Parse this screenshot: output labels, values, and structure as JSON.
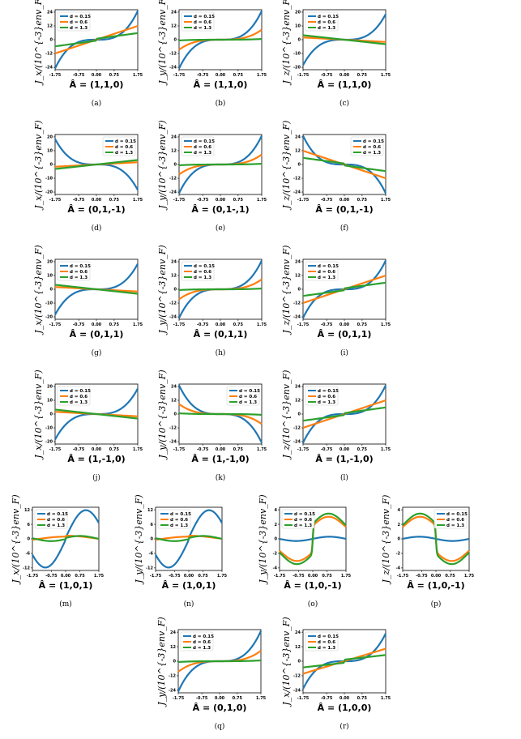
{
  "figure": {
    "legend_labels": [
      "d = 0.15",
      "d = 0.6",
      "d = 1.3"
    ],
    "colors": [
      "#1f77b4",
      "#ff7f0e",
      "#2ca02c"
    ]
  },
  "chart_data": [
    {
      "id": "a",
      "caption": "(a)",
      "type": "line",
      "ylabel": "J_x/(10^{-3}env_F)",
      "xlabel": "Â = (1,1,0)",
      "ylim": [
        -24,
        24
      ],
      "yticks": [
        "24",
        "12",
        "0",
        "-12",
        "-24"
      ],
      "xticks": [
        "-1.75",
        "-0.75",
        "0.00",
        "0.75",
        "1.75"
      ],
      "xlim": [
        -1.75,
        1.75
      ],
      "legend": "top-left",
      "series": [
        {
          "name": "d = 0.15",
          "shape": "cubic",
          "amp": 23,
          "jump": 0
        },
        {
          "name": "d = 0.6",
          "shape": "linear",
          "amp": 11,
          "jump": 0
        },
        {
          "name": "d = 1.3",
          "shape": "linear",
          "amp": 4.5,
          "jump": 0.8
        }
      ]
    },
    {
      "id": "b",
      "caption": "(b)",
      "type": "line",
      "ylabel": "J_y/(10^{-3}env_F)",
      "xlabel": "Â = (1,1,0)",
      "ylim": [
        -24,
        24
      ],
      "yticks": [
        "24",
        "12",
        "0",
        "-12",
        "-24"
      ],
      "xticks": [
        "-1.75",
        "-0.75",
        "0.00",
        "0.75",
        "1.75"
      ],
      "xlim": [
        -1.75,
        1.75
      ],
      "legend": "top-left",
      "series": [
        {
          "name": "d = 0.15",
          "shape": "cubic",
          "amp": 23,
          "jump": 0
        },
        {
          "name": "d = 0.6",
          "shape": "cubic",
          "amp": 8,
          "jump": 0
        },
        {
          "name": "d = 1.3",
          "shape": "cubic",
          "amp": 0.6,
          "jump": 0
        }
      ]
    },
    {
      "id": "c",
      "caption": "(c)",
      "type": "line",
      "ylabel": "J_z/(10^{-3}env_F)",
      "xlabel": "Â = (1,1,0)",
      "ylim": [
        -20,
        20
      ],
      "yticks": [
        "20",
        "10",
        "0",
        "-10",
        "-20"
      ],
      "xticks": [
        "-1.75",
        "-0.75",
        "0.00",
        "0.75",
        "1.75"
      ],
      "xlim": [
        -1.75,
        1.75
      ],
      "legend": "top-left",
      "series": [
        {
          "name": "d = 0.15",
          "shape": "cubic",
          "amp": 17,
          "jump": 0
        },
        {
          "name": "d = 0.6",
          "shape": "linear",
          "amp": -1.5,
          "jump": 0
        },
        {
          "name": "d = 1.3",
          "shape": "linear",
          "amp": -3,
          "jump": 0
        }
      ]
    },
    {
      "id": "d",
      "caption": "(d)",
      "type": "line",
      "ylabel": "J_x/(10^{-3}env_F)",
      "xlabel": "Â = (0,1,-1)",
      "ylim": [
        -20,
        20
      ],
      "yticks": [
        "20",
        "10",
        "0",
        "-10",
        "-20"
      ],
      "xticks": [
        "-1.75",
        "-0.75",
        "0.00",
        "0.75",
        "1.75"
      ],
      "xlim": [
        -1.75,
        1.75
      ],
      "legend": "top-right",
      "series": [
        {
          "name": "d = 0.15",
          "shape": "cubic",
          "amp": -17,
          "jump": 0
        },
        {
          "name": "d = 0.6",
          "shape": "linear",
          "amp": 1.5,
          "jump": 0
        },
        {
          "name": "d = 1.3",
          "shape": "linear",
          "amp": 3,
          "jump": 0
        }
      ]
    },
    {
      "id": "e",
      "caption": "(e)",
      "type": "line",
      "ylabel": "J_y/(10^{-3}env_F)",
      "xlabel": "Â = (0,1-,1)",
      "ylim": [
        -24,
        24
      ],
      "yticks": [
        "24",
        "12",
        "0",
        "-12",
        "-24"
      ],
      "xticks": [
        "-1.75",
        "-0.75",
        "0.00",
        "0.75",
        "1.75"
      ],
      "xlim": [
        -1.75,
        1.75
      ],
      "legend": "top-left",
      "series": [
        {
          "name": "d = 0.15",
          "shape": "cubic",
          "amp": 23,
          "jump": 0
        },
        {
          "name": "d = 0.6",
          "shape": "cubic",
          "amp": 8,
          "jump": 0
        },
        {
          "name": "d = 1.3",
          "shape": "cubic",
          "amp": 0.6,
          "jump": 0
        }
      ]
    },
    {
      "id": "f",
      "caption": "(f)",
      "type": "line",
      "ylabel": "J_z/(10^{-3}env_F)",
      "xlabel": "Â = (0,1,-1)",
      "ylim": [
        -24,
        24
      ],
      "yticks": [
        "24",
        "12",
        "0",
        "-12",
        "-24"
      ],
      "xticks": [
        "-1.75",
        "-0.75",
        "0.00",
        "0.75",
        "1.75"
      ],
      "xlim": [
        -1.75,
        1.75
      ],
      "legend": "top-right",
      "series": [
        {
          "name": "d = 0.15",
          "shape": "cubic",
          "amp": -23,
          "jump": 0
        },
        {
          "name": "d = 0.6",
          "shape": "linear",
          "amp": -11,
          "jump": 0
        },
        {
          "name": "d = 1.3",
          "shape": "linear",
          "amp": -4.5,
          "jump": -0.8
        }
      ]
    },
    {
      "id": "g",
      "caption": "(g)",
      "type": "line",
      "ylabel": "J_x/(10^{-3}env_F)",
      "xlabel": "Â = (0,1,1)",
      "ylim": [
        -20,
        20
      ],
      "yticks": [
        "20",
        "10",
        "0",
        "-10",
        "-20"
      ],
      "xticks": [
        "-1.75",
        "-0.75",
        "0.00",
        "0.75",
        "1.75"
      ],
      "xlim": [
        -1.75,
        1.75
      ],
      "legend": "top-left",
      "series": [
        {
          "name": "d = 0.15",
          "shape": "cubic",
          "amp": 17,
          "jump": 0
        },
        {
          "name": "d = 0.6",
          "shape": "linear",
          "amp": -1.5,
          "jump": 0
        },
        {
          "name": "d = 1.3",
          "shape": "linear",
          "amp": -3,
          "jump": 0
        }
      ]
    },
    {
      "id": "h",
      "caption": "(h)",
      "type": "line",
      "ylabel": "J_y/(10^{-3}env_F)",
      "xlabel": "Â = (0,1,1)",
      "ylim": [
        -24,
        24
      ],
      "yticks": [
        "24",
        "12",
        "0",
        "-12",
        "-24"
      ],
      "xticks": [
        "-1.75",
        "-0.75",
        "0.00",
        "0.75",
        "1.75"
      ],
      "xlim": [
        -1.75,
        1.75
      ],
      "legend": "top-left",
      "series": [
        {
          "name": "d = 0.15",
          "shape": "cubic",
          "amp": 23,
          "jump": 0
        },
        {
          "name": "d = 0.6",
          "shape": "cubic",
          "amp": 8,
          "jump": 0
        },
        {
          "name": "d = 1.3",
          "shape": "cubic",
          "amp": 0.6,
          "jump": 0
        }
      ]
    },
    {
      "id": "i",
      "caption": "(i)",
      "type": "line",
      "ylabel": "J_z/(10^{-3}env_F)",
      "xlabel": "Â = (0,1,1)",
      "ylim": [
        -24,
        24
      ],
      "yticks": [
        "24",
        "12",
        "0",
        "-12",
        "-24"
      ],
      "xticks": [
        "-1.75",
        "-0.75",
        "0.00",
        "0.75",
        "1.75"
      ],
      "xlim": [
        -1.75,
        1.75
      ],
      "legend": "top-left",
      "series": [
        {
          "name": "d = 0.15",
          "shape": "cubic",
          "amp": 23,
          "jump": 0
        },
        {
          "name": "d = 0.6",
          "shape": "linear",
          "amp": 11,
          "jump": 0
        },
        {
          "name": "d = 1.3",
          "shape": "linear",
          "amp": 4.5,
          "jump": 0.8
        }
      ]
    },
    {
      "id": "j",
      "caption": "(j)",
      "type": "line",
      "ylabel": "J_x/(10^{-3}env_F)",
      "xlabel": "Â = (1,-1,0)",
      "ylim": [
        -20,
        20
      ],
      "yticks": [
        "20",
        "10",
        "0",
        "-10",
        "-20"
      ],
      "xticks": [
        "-1.75",
        "-0.75",
        "0.00",
        "0.75",
        "1.75"
      ],
      "xlim": [
        -1.75,
        1.75
      ],
      "legend": "top-left",
      "series": [
        {
          "name": "d = 0.15",
          "shape": "cubic",
          "amp": 17,
          "jump": 0
        },
        {
          "name": "d = 0.6",
          "shape": "linear",
          "amp": -1.5,
          "jump": 0
        },
        {
          "name": "d = 1.3",
          "shape": "linear",
          "amp": -3,
          "jump": 0
        }
      ]
    },
    {
      "id": "k",
      "caption": "(k)",
      "type": "line",
      "ylabel": "J_y/(10^{-3}env_F)",
      "xlabel": "Â = (1,-1,0)",
      "ylim": [
        -24,
        24
      ],
      "yticks": [
        "24",
        "12",
        "0",
        "-12",
        "-24"
      ],
      "xticks": [
        "-1.75",
        "-0.75",
        "0.00",
        "0.75",
        "1.75"
      ],
      "xlim": [
        -1.75,
        1.75
      ],
      "legend": "top-right",
      "series": [
        {
          "name": "d = 0.15",
          "shape": "cubic",
          "amp": -23,
          "jump": 0
        },
        {
          "name": "d = 0.6",
          "shape": "cubic",
          "amp": -8,
          "jump": 0
        },
        {
          "name": "d = 1.3",
          "shape": "cubic",
          "amp": -0.6,
          "jump": 0
        }
      ]
    },
    {
      "id": "l",
      "caption": "(l)",
      "type": "line",
      "ylabel": "J_z/(10^{-3}env_F)",
      "xlabel": "Â = (1,-1,0)",
      "ylim": [
        -24,
        24
      ],
      "yticks": [
        "24",
        "12",
        "0",
        "-12",
        "-24"
      ],
      "xticks": [
        "-1.75",
        "-0.75",
        "0.00",
        "0.75",
        "1.75"
      ],
      "xlim": [
        -1.75,
        1.75
      ],
      "legend": "top-left",
      "series": [
        {
          "name": "d = 0.15",
          "shape": "cubic",
          "amp": 23,
          "jump": 0
        },
        {
          "name": "d = 0.6",
          "shape": "linear",
          "amp": 11,
          "jump": 0
        },
        {
          "name": "d = 1.3",
          "shape": "linear",
          "amp": 4.5,
          "jump": 0.8
        }
      ]
    },
    {
      "id": "m",
      "caption": "(m)",
      "type": "line",
      "ylabel": "J_x/(10^{-3}env_F)",
      "xlabel": "Â = (1,0,1)",
      "ylim": [
        -16,
        16
      ],
      "yticks": [
        "12",
        "6",
        "0",
        "-6",
        "-12"
      ],
      "xticks": [
        "-1.75",
        "-0.75",
        "0.00",
        "0.75",
        "1.75"
      ],
      "xlim": [
        -1.75,
        1.75
      ],
      "legend": "top-left",
      "series": [
        {
          "name": "d = 0.15",
          "shape": "sine",
          "amp": 14,
          "jump": 0
        },
        {
          "name": "d = 0.6",
          "shape": "bump",
          "amp": 2,
          "jump": 1
        },
        {
          "name": "d = 1.3",
          "shape": "bump2",
          "amp": 2,
          "jump": 1.2
        }
      ]
    },
    {
      "id": "n",
      "caption": "(n)",
      "type": "line",
      "ylabel": "J_y/(10^{-3}env_F)",
      "xlabel": "Â = (1,0,1)",
      "ylim": [
        -16,
        16
      ],
      "yticks": [
        "12",
        "6",
        "0",
        "-6",
        "-12"
      ],
      "xticks": [
        "-1.75",
        "-0.75",
        "0.00",
        "0.75",
        "1.75"
      ],
      "xlim": [
        -1.75,
        1.75
      ],
      "legend": "top-left",
      "series": [
        {
          "name": "d = 0.15",
          "shape": "sine",
          "amp": 14,
          "jump": 0
        },
        {
          "name": "d = 0.6",
          "shape": "bump",
          "amp": 2,
          "jump": 1
        },
        {
          "name": "d = 1.3",
          "shape": "bump2",
          "amp": 2,
          "jump": 1.2
        }
      ]
    },
    {
      "id": "o",
      "caption": "(o)",
      "type": "line",
      "ylabel": "J_y/(10^{-3}env_F)",
      "xlabel": "Â = (1,0,-1)",
      "ylim": [
        -4,
        4
      ],
      "yticks": [
        "4",
        "2",
        "0",
        "-2",
        "-4"
      ],
      "xticks": [
        "-1.75",
        "-0.75",
        "0.00",
        "0.75",
        "1.75"
      ],
      "xlim": [
        -1.75,
        1.75
      ],
      "legend": "top-left",
      "series": [
        {
          "name": "d = 0.15",
          "shape": "flat",
          "amp": 0.3,
          "jump": 0
        },
        {
          "name": "d = 0.6",
          "shape": "step",
          "amp": 2.8,
          "jump": 0
        },
        {
          "name": "d = 1.3",
          "shape": "step",
          "amp": 3.2,
          "jump": 0
        }
      ]
    },
    {
      "id": "p",
      "caption": "(p)",
      "type": "line",
      "ylabel": "J_z/(10^{-3}env_F)",
      "xlabel": "Â = (1,0,-1)",
      "ylim": [
        -4,
        4
      ],
      "yticks": [
        "4",
        "2",
        "0",
        "-2",
        "-4"
      ],
      "xticks": [
        "-1.75",
        "-0.75",
        "0.00",
        "0.75",
        "1.75"
      ],
      "xlim": [
        -1.75,
        1.75
      ],
      "legend": "top-right",
      "series": [
        {
          "name": "d = 0.15",
          "shape": "flat",
          "amp": -0.3,
          "jump": 0
        },
        {
          "name": "d = 0.6",
          "shape": "step",
          "amp": -2.8,
          "jump": 0
        },
        {
          "name": "d = 1.3",
          "shape": "step",
          "amp": -3.2,
          "jump": 0
        }
      ]
    },
    {
      "id": "q",
      "caption": "(q)",
      "type": "line",
      "ylabel": "J_y/(10^{-3}env_F)",
      "xlabel": "Â = (0,1,0)",
      "ylim": [
        -24,
        24
      ],
      "yticks": [
        "24",
        "12",
        "0",
        "-12",
        "-24"
      ],
      "xticks": [
        "-1.75",
        "-0.75",
        "0.00",
        "0.75",
        "1.75"
      ],
      "xlim": [
        -1.75,
        1.75
      ],
      "legend": "top-left",
      "series": [
        {
          "name": "d = 0.15",
          "shape": "cubic",
          "amp": 23,
          "jump": 0
        },
        {
          "name": "d = 0.6",
          "shape": "cubic",
          "amp": 8,
          "jump": 0
        },
        {
          "name": "d = 1.3",
          "shape": "cubic",
          "amp": 0.6,
          "jump": 0
        }
      ]
    },
    {
      "id": "r",
      "caption": "(r)",
      "type": "line",
      "ylabel": "J_x/(10^{-3}env_F)",
      "xlabel": "Â = (1,0,0)",
      "ylim": [
        -24,
        24
      ],
      "yticks": [
        "24",
        "12",
        "0",
        "-12",
        "-24"
      ],
      "xticks": [
        "-1.75",
        "-0.75",
        "0.00",
        "0.75",
        "1.75"
      ],
      "xlim": [
        -1.75,
        1.75
      ],
      "legend": "top-left",
      "series": [
        {
          "name": "d = 0.15",
          "shape": "cubic",
          "amp": 21,
          "jump": 0
        },
        {
          "name": "d = 0.6",
          "shape": "linear",
          "amp": 9.5,
          "jump": 0
        },
        {
          "name": "d = 1.3",
          "shape": "linear",
          "amp": 3.5,
          "jump": 1.2
        }
      ]
    }
  ]
}
